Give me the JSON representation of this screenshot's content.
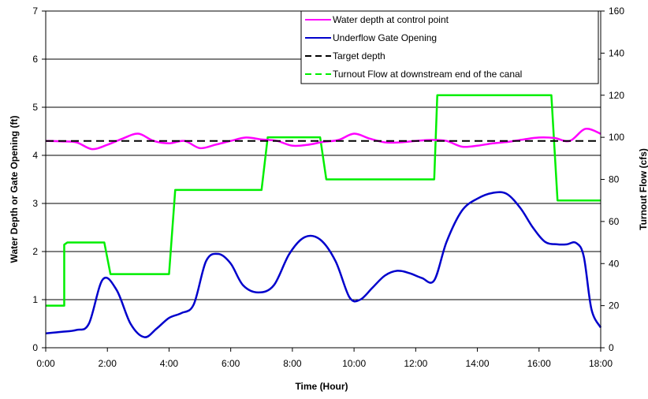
{
  "chart_data": {
    "type": "line",
    "title": "",
    "xlabel": "Time (Hour)",
    "ylabel_left": "Water Depth or Gate Opening (ft)",
    "ylabel_right": "Turnout  Flow (cfs)",
    "xlim": [
      0,
      18
    ],
    "ylim_left": [
      0,
      7
    ],
    "ylim_right": [
      0,
      160
    ],
    "x_ticks": [
      0,
      2,
      4,
      6,
      8,
      10,
      12,
      14,
      16,
      18
    ],
    "x_tick_labels": [
      "0:00",
      "2:00",
      "4:00",
      "6:00",
      "8:00",
      "10:00",
      "12:00",
      "14:00",
      "16:00",
      "18:00"
    ],
    "y_left_ticks": [
      0,
      1,
      2,
      3,
      4,
      5,
      6,
      7
    ],
    "y_left_tick_labels": [
      "0",
      "1",
      "2",
      "3",
      "4",
      "5",
      "6",
      "7"
    ],
    "y_right_ticks": [
      0,
      20,
      40,
      60,
      80,
      100,
      120,
      140,
      160
    ],
    "y_right_tick_labels": [
      "0",
      "20",
      "40",
      "60",
      "80",
      "100",
      "120",
      "140",
      "160"
    ],
    "grid": "horizontal",
    "legend_position": "top-right",
    "series": [
      {
        "name": "Water depth at control point",
        "axis": "left",
        "color": "#ff00ff",
        "dash": "solid",
        "smooth": true,
        "x": [
          0,
          0.5,
          1.0,
          1.5,
          2.0,
          2.5,
          3.0,
          3.5,
          4.0,
          4.5,
          5.0,
          5.5,
          6.0,
          6.5,
          7.0,
          7.5,
          8.0,
          8.5,
          9.0,
          9.5,
          10.0,
          10.5,
          11.0,
          11.5,
          12.0,
          12.5,
          13.0,
          13.5,
          14.0,
          14.5,
          15.0,
          15.5,
          16.0,
          16.5,
          17.0,
          17.5,
          18.0
        ],
        "values": [
          4.3,
          4.29,
          4.27,
          4.13,
          4.22,
          4.35,
          4.45,
          4.3,
          4.25,
          4.3,
          4.15,
          4.22,
          4.3,
          4.37,
          4.33,
          4.3,
          4.2,
          4.22,
          4.28,
          4.32,
          4.45,
          4.35,
          4.27,
          4.27,
          4.3,
          4.32,
          4.3,
          4.18,
          4.2,
          4.25,
          4.28,
          4.33,
          4.37,
          4.36,
          4.3,
          4.55,
          4.45
        ]
      },
      {
        "name": "Underflow Gate Opening",
        "axis": "left",
        "color": "#0000cc",
        "dash": "solid",
        "smooth": true,
        "x": [
          0,
          0.5,
          1.0,
          1.4,
          1.85,
          2.3,
          2.75,
          3.2,
          3.6,
          4.0,
          4.4,
          4.8,
          5.2,
          5.6,
          6.0,
          6.4,
          6.9,
          7.4,
          7.9,
          8.4,
          8.9,
          9.4,
          9.85,
          10.2,
          10.6,
          11.0,
          11.4,
          11.8,
          12.2,
          12.6,
          13.0,
          13.5,
          14.0,
          14.5,
          14.95,
          15.4,
          15.8,
          16.2,
          16.6,
          16.9,
          17.2,
          17.45,
          17.7,
          18.0
        ],
        "values": [
          0.3,
          0.33,
          0.37,
          0.5,
          1.42,
          1.2,
          0.5,
          0.22,
          0.4,
          0.62,
          0.72,
          0.9,
          1.8,
          1.95,
          1.75,
          1.3,
          1.15,
          1.3,
          1.95,
          2.3,
          2.25,
          1.8,
          1.05,
          1.0,
          1.25,
          1.5,
          1.6,
          1.55,
          1.45,
          1.4,
          2.2,
          2.85,
          3.1,
          3.22,
          3.2,
          2.9,
          2.5,
          2.2,
          2.15,
          2.15,
          2.18,
          1.9,
          0.8,
          0.42
        ]
      },
      {
        "name": "Target depth",
        "axis": "left",
        "color": "#000000",
        "dash": "dashed",
        "smooth": false,
        "x": [
          0,
          18
        ],
        "values": [
          4.3,
          4.3
        ]
      },
      {
        "name": "Turnout Flow at downstream end of the canal",
        "axis": "right",
        "color": "#00ee00",
        "dash": "solid",
        "smooth": false,
        "x": [
          0,
          0.6,
          0.6,
          0.7,
          1.9,
          2.1,
          4.0,
          4.2,
          7.0,
          7.2,
          8.9,
          9.1,
          12.6,
          12.7,
          16.4,
          16.6,
          18.0
        ],
        "values": [
          20,
          20,
          49,
          50,
          50,
          35,
          35,
          75,
          75,
          100,
          100,
          80,
          80,
          120,
          120,
          70,
          70
        ]
      }
    ]
  }
}
